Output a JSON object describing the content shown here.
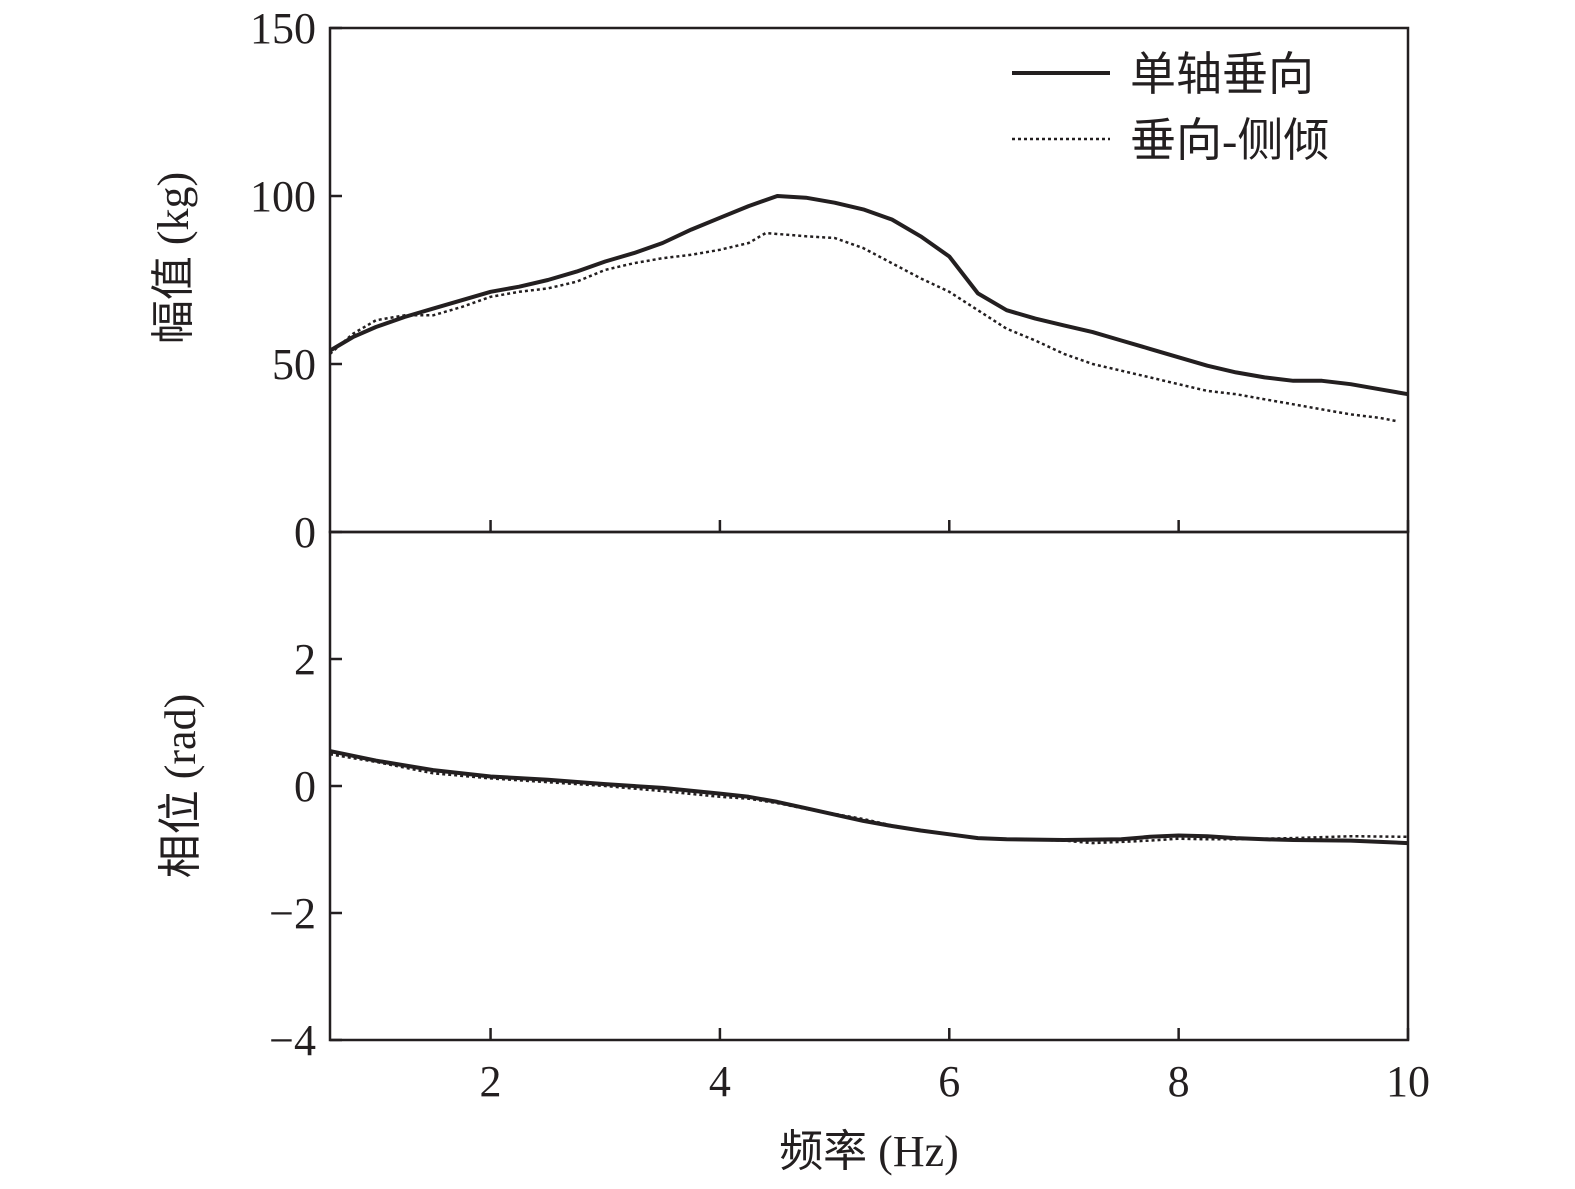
{
  "chart_data": [
    {
      "type": "line",
      "panel": "top",
      "ylabel": "幅值 (kg)",
      "xlim": [
        0.6,
        10
      ],
      "ylim": [
        0,
        150
      ],
      "yticks": [
        0,
        50,
        100,
        150
      ],
      "xticks": [
        2,
        4,
        6,
        8,
        10
      ],
      "grid": false,
      "legend_position": "top-right",
      "series": [
        {
          "name": "单轴垂向",
          "style": "solid",
          "x": [
            0.6,
            0.8,
            1.0,
            1.25,
            1.5,
            1.75,
            2.0,
            2.25,
            2.5,
            2.75,
            3.0,
            3.25,
            3.5,
            3.75,
            4.0,
            4.25,
            4.5,
            4.75,
            5.0,
            5.25,
            5.5,
            5.75,
            6.0,
            6.25,
            6.5,
            6.75,
            7.0,
            7.25,
            7.5,
            7.75,
            8.0,
            8.25,
            8.5,
            8.75,
            9.0,
            9.25,
            9.5,
            9.75,
            10.0
          ],
          "y": [
            54,
            58,
            61,
            64,
            66.5,
            69,
            71.5,
            73,
            75,
            77.5,
            80.5,
            83,
            86,
            90,
            93.5,
            97,
            100,
            99.5,
            98,
            96,
            93,
            88,
            82,
            71,
            66,
            63.5,
            61.5,
            59.5,
            57,
            54.5,
            52,
            49.5,
            47.5,
            46,
            45,
            45,
            44,
            42.5,
            41
          ]
        },
        {
          "name": "垂向-侧倾",
          "style": "dotted",
          "x": [
            0.6,
            0.8,
            1.0,
            1.25,
            1.5,
            1.75,
            2.0,
            2.25,
            2.5,
            2.75,
            3.0,
            3.25,
            3.5,
            3.75,
            4.0,
            4.25,
            4.4,
            4.75,
            5.0,
            5.25,
            5.5,
            5.75,
            6.0,
            6.25,
            6.5,
            6.75,
            7.0,
            7.25,
            7.5,
            7.75,
            8.0,
            8.25,
            8.5,
            8.75,
            9.0,
            9.25,
            9.5,
            9.75,
            9.9
          ],
          "y": [
            53,
            59,
            63,
            64.5,
            64.5,
            67,
            70,
            71.5,
            72.5,
            74.5,
            78,
            80,
            81.5,
            82.5,
            84,
            86,
            89,
            88,
            87.5,
            84.5,
            80,
            75.5,
            71.5,
            66,
            60.5,
            57,
            53,
            50,
            48,
            46,
            44,
            42,
            41,
            39.5,
            38,
            36.5,
            35,
            34,
            33
          ]
        }
      ]
    },
    {
      "type": "line",
      "panel": "bottom",
      "xlabel": "频率 (Hz)",
      "ylabel": "相位 (rad)",
      "xlim": [
        0.6,
        10
      ],
      "ylim": [
        -4,
        4
      ],
      "yticks": [
        -4,
        -2,
        0,
        2
      ],
      "ytick_labels": [
        "−4",
        "−2",
        "0",
        "2"
      ],
      "xticks": [
        2,
        4,
        6,
        8,
        10
      ],
      "grid": false,
      "series": [
        {
          "name": "单轴垂向",
          "style": "solid",
          "x": [
            0.6,
            1.0,
            1.5,
            2.0,
            2.5,
            3.0,
            3.5,
            4.0,
            4.25,
            4.5,
            4.75,
            5.0,
            5.25,
            5.5,
            5.75,
            6.0,
            6.25,
            6.5,
            7.0,
            7.5,
            7.75,
            8.0,
            8.25,
            8.5,
            8.75,
            9.0,
            9.5,
            10.0
          ],
          "y": [
            0.55,
            0.4,
            0.25,
            0.15,
            0.1,
            0.03,
            -0.03,
            -0.12,
            -0.17,
            -0.25,
            -0.35,
            -0.45,
            -0.55,
            -0.63,
            -0.7,
            -0.76,
            -0.82,
            -0.84,
            -0.85,
            -0.84,
            -0.8,
            -0.78,
            -0.79,
            -0.82,
            -0.84,
            -0.85,
            -0.86,
            -0.9
          ]
        },
        {
          "name": "垂向-侧倾",
          "style": "dotted",
          "x": [
            0.6,
            1.0,
            1.5,
            2.0,
            2.5,
            3.0,
            3.5,
            4.0,
            4.25,
            4.5,
            4.75,
            5.0,
            5.25,
            5.5,
            5.75,
            6.0,
            6.25,
            6.5,
            7.0,
            7.25,
            7.5,
            7.75,
            8.0,
            8.25,
            8.5,
            8.75,
            9.0,
            9.5,
            10.0
          ],
          "y": [
            0.5,
            0.38,
            0.2,
            0.12,
            0.06,
            0.0,
            -0.08,
            -0.17,
            -0.2,
            -0.27,
            -0.36,
            -0.44,
            -0.52,
            -0.62,
            -0.7,
            -0.76,
            -0.82,
            -0.84,
            -0.86,
            -0.9,
            -0.88,
            -0.86,
            -0.83,
            -0.84,
            -0.84,
            -0.83,
            -0.82,
            -0.79,
            -0.8
          ]
        }
      ]
    }
  ]
}
